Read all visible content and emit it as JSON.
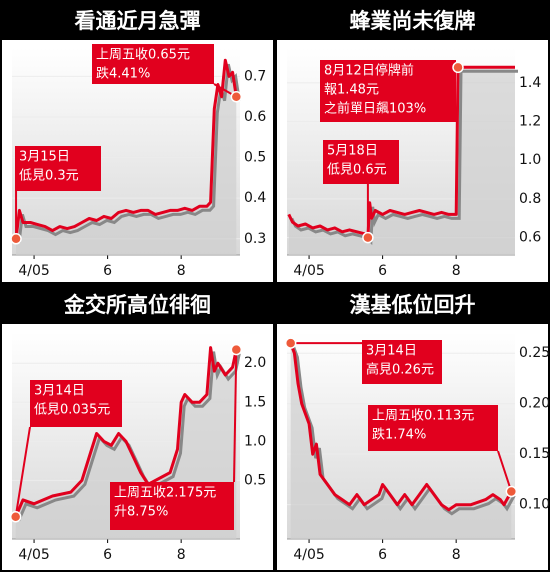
{
  "chart_data": [
    {
      "type": "line",
      "title": "看通近月急彈",
      "color": "#e1001e",
      "x": [
        3.51,
        3.6,
        3.7,
        3.9,
        4.1,
        4.3,
        4.5,
        4.7,
        4.9,
        5.1,
        5.3,
        5.5,
        5.7,
        5.9,
        6.1,
        6.3,
        6.5,
        6.7,
        6.9,
        7.1,
        7.3,
        7.5,
        7.7,
        7.9,
        8.1,
        8.3,
        8.5,
        8.7,
        8.8,
        8.9,
        9.0,
        9.1,
        9.2,
        9.3,
        9.4,
        9.5
      ],
      "values": [
        0.3,
        0.37,
        0.34,
        0.34,
        0.335,
        0.33,
        0.32,
        0.33,
        0.325,
        0.33,
        0.34,
        0.35,
        0.345,
        0.355,
        0.35,
        0.365,
        0.37,
        0.365,
        0.37,
        0.37,
        0.36,
        0.365,
        0.37,
        0.37,
        0.375,
        0.37,
        0.38,
        0.38,
        0.39,
        0.62,
        0.68,
        0.65,
        0.74,
        0.7,
        0.71,
        0.65
      ],
      "xlim": [
        3.4,
        9.6
      ],
      "xticks": [
        {
          "value": 4,
          "label": "4/05"
        },
        6,
        8
      ],
      "ylim": [
        0.26,
        0.77
      ],
      "yticks": [
        0.3,
        0.4,
        0.5,
        0.6,
        0.7
      ],
      "annotations": [
        {
          "lines": [
            "上周五收0.65元",
            "跌4.41%"
          ]
        },
        {
          "lines": [
            "3月15日",
            "低見0.3元"
          ]
        }
      ]
    },
    {
      "type": "line",
      "title": "蜂業尚未復牌",
      "color": "#e1001e",
      "x": [
        3.45,
        3.55,
        3.7,
        3.9,
        4.1,
        4.3,
        4.5,
        4.7,
        4.9,
        5.1,
        5.3,
        5.5,
        5.6,
        5.65,
        5.7,
        5.8,
        6.0,
        6.2,
        6.4,
        6.6,
        6.8,
        7.0,
        7.2,
        7.4,
        7.6,
        7.8,
        8.0,
        8.05,
        9.6
      ],
      "values": [
        0.72,
        0.68,
        0.66,
        0.67,
        0.65,
        0.66,
        0.64,
        0.65,
        0.63,
        0.64,
        0.63,
        0.62,
        0.6,
        0.78,
        0.7,
        0.74,
        0.72,
        0.74,
        0.73,
        0.72,
        0.73,
        0.74,
        0.73,
        0.72,
        0.73,
        0.72,
        0.72,
        1.48,
        1.48
      ],
      "xlim": [
        3.4,
        9.6
      ],
      "xticks": [
        {
          "value": 4,
          "label": "4/05"
        },
        6,
        8
      ],
      "ylim": [
        0.51,
        1.58
      ],
      "yticks": [
        0.6,
        0.8,
        {
          "value": 1.0,
          "label": "1.0"
        },
        1.2,
        1.4
      ],
      "annotations": [
        {
          "lines": [
            "8月12日停牌前",
            "報1.48元",
            "之前單日飆103%"
          ]
        },
        {
          "lines": [
            "5月18日",
            "低見0.6元"
          ]
        }
      ]
    },
    {
      "type": "line",
      "title": "金交所高位徘徊",
      "color": "#e1001e",
      "x": [
        3.5,
        3.7,
        4.0,
        4.5,
        5.0,
        5.3,
        5.5,
        5.7,
        5.9,
        6.1,
        6.3,
        6.5,
        6.7,
        6.9,
        7.1,
        7.3,
        7.5,
        7.7,
        7.9,
        8.0,
        8.1,
        8.3,
        8.5,
        8.7,
        8.8,
        8.9,
        9.0,
        9.2,
        9.4,
        9.5
      ],
      "values": [
        0.035,
        0.25,
        0.2,
        0.3,
        0.35,
        0.5,
        0.8,
        1.1,
        1.0,
        0.95,
        1.1,
        1.0,
        0.8,
        0.6,
        0.45,
        0.5,
        0.55,
        0.6,
        0.9,
        1.5,
        1.6,
        1.5,
        1.5,
        1.6,
        2.2,
        1.9,
        2.0,
        1.85,
        1.95,
        2.175
      ],
      "xlim": [
        3.4,
        9.6
      ],
      "xticks": [
        {
          "value": 4,
          "label": "4/05"
        },
        6,
        8
      ],
      "ylim": [
        -0.25,
        2.4
      ],
      "yticks": [
        0.5,
        {
          "value": 1.0,
          "label": "1.0"
        },
        1.5,
        {
          "value": 2.0,
          "label": "2.0"
        }
      ],
      "annotations": [
        {
          "lines": [
            "3月14日",
            "低見0.035元"
          ]
        },
        {
          "lines": [
            "上周五收2.175元",
            "升8.75%"
          ]
        }
      ]
    },
    {
      "type": "line",
      "title": "漢基低位回升",
      "color": "#e1001e",
      "x": [
        3.5,
        3.6,
        3.7,
        3.8,
        4.0,
        4.1,
        4.2,
        4.3,
        4.5,
        4.7,
        4.9,
        5.1,
        5.3,
        5.5,
        5.7,
        5.9,
        6.0,
        6.2,
        6.4,
        6.6,
        6.8,
        7.0,
        7.2,
        7.4,
        7.6,
        7.8,
        8.0,
        8.4,
        8.8,
        9.0,
        9.2,
        9.3,
        9.5
      ],
      "values": [
        0.26,
        0.25,
        0.22,
        0.2,
        0.18,
        0.15,
        0.16,
        0.13,
        0.12,
        0.11,
        0.105,
        0.1,
        0.11,
        0.1,
        0.105,
        0.11,
        0.12,
        0.11,
        0.1,
        0.11,
        0.1,
        0.11,
        0.12,
        0.11,
        0.1,
        0.095,
        0.1,
        0.1,
        0.105,
        0.11,
        0.105,
        0.1,
        0.113
      ],
      "xlim": [
        3.4,
        9.6
      ],
      "xticks": [
        {
          "value": 4,
          "label": "4/05"
        },
        6,
        8
      ],
      "ylim": [
        0.066,
        0.271
      ],
      "yticks": [
        {
          "value": 0.1,
          "label": "0.10"
        },
        0.15,
        {
          "value": 0.2,
          "label": "0.20"
        },
        0.25
      ],
      "annotations": [
        {
          "lines": [
            "3月14日",
            "高見0.26元"
          ]
        },
        {
          "lines": [
            "上周五收0.113元",
            "跌1.74%"
          ]
        }
      ]
    }
  ]
}
